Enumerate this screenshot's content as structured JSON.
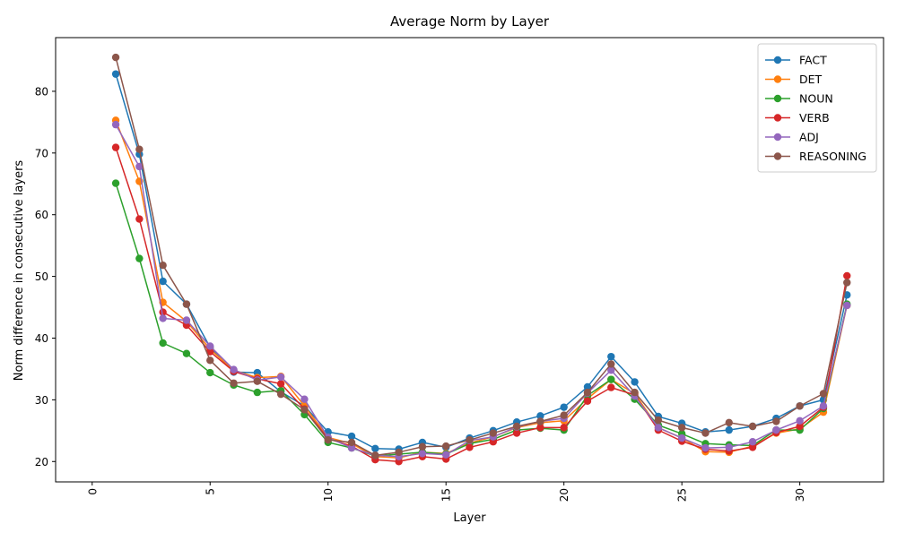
{
  "chart_data": {
    "type": "line",
    "title": "Average Norm by Layer",
    "xlabel": "Layer",
    "ylabel": "Norm difference in consecutive layers",
    "xlim": [
      -1.55,
      33.55
    ],
    "ylim": [
      16.7,
      88.7
    ],
    "x_ticks": [
      0,
      5,
      10,
      15,
      20,
      25,
      30
    ],
    "y_ticks": [
      20,
      30,
      40,
      50,
      60,
      70,
      80
    ],
    "x_tick_rotation": 90,
    "grid": false,
    "legend_position": "top-right",
    "x": [
      1,
      2,
      3,
      4,
      5,
      6,
      7,
      8,
      9,
      10,
      11,
      12,
      13,
      14,
      15,
      16,
      17,
      18,
      19,
      20,
      21,
      22,
      23,
      24,
      25,
      26,
      27,
      28,
      29,
      30,
      31,
      32
    ],
    "series": [
      {
        "name": "FACT",
        "color": "#1f77b4",
        "values": [
          82.8,
          69.8,
          49.2,
          45.5,
          38.5,
          34.5,
          34.4,
          31.3,
          29.0,
          24.8,
          24.1,
          22.1,
          22.0,
          23.1,
          22.3,
          23.8,
          25.0,
          26.4,
          27.4,
          28.8,
          32.1,
          37.0,
          32.9,
          27.3,
          26.2,
          24.8,
          25.1,
          25.7,
          27.0,
          29.0,
          30.0,
          47.0
        ]
      },
      {
        "name": "DET",
        "color": "#ff7f0e",
        "values": [
          75.3,
          65.4,
          45.8,
          42.7,
          38.2,
          34.8,
          33.6,
          33.8,
          29.0,
          23.9,
          22.9,
          20.8,
          20.6,
          21.5,
          21.3,
          23.0,
          24.0,
          25.5,
          26.3,
          26.6,
          30.2,
          33.3,
          31.0,
          25.5,
          23.8,
          21.6,
          21.5,
          22.5,
          24.6,
          25.3,
          28.0,
          45.3
        ]
      },
      {
        "name": "NOUN",
        "color": "#2ca02c",
        "values": [
          65.1,
          52.9,
          39.2,
          37.5,
          34.4,
          32.4,
          31.2,
          31.5,
          27.6,
          23.1,
          22.2,
          20.9,
          21.2,
          21.5,
          21.2,
          22.9,
          23.6,
          25.1,
          25.4,
          25.1,
          30.7,
          33.3,
          30.1,
          25.9,
          24.5,
          22.9,
          22.7,
          22.6,
          25.1,
          25.1,
          28.6,
          45.5
        ]
      },
      {
        "name": "VERB",
        "color": "#d62728",
        "values": [
          70.9,
          59.3,
          44.2,
          42.1,
          37.8,
          34.6,
          33.4,
          32.6,
          28.5,
          23.7,
          22.5,
          20.3,
          20.0,
          20.8,
          20.4,
          22.3,
          23.2,
          24.6,
          25.5,
          25.5,
          29.8,
          32.0,
          30.8,
          25.1,
          23.3,
          22.0,
          21.7,
          22.3,
          24.7,
          25.7,
          28.8,
          50.1
        ]
      },
      {
        "name": "ADJ",
        "color": "#9467bd",
        "values": [
          74.6,
          67.8,
          43.2,
          42.9,
          38.7,
          34.9,
          33.2,
          33.7,
          30.1,
          23.9,
          22.2,
          21.0,
          20.8,
          21.3,
          21.1,
          23.4,
          24.0,
          25.6,
          26.5,
          27.0,
          31.1,
          34.8,
          30.6,
          25.5,
          23.8,
          22.2,
          22.3,
          23.2,
          25.1,
          26.6,
          29.0,
          45.3
        ]
      },
      {
        "name": "REASONING",
        "color": "#8c564b",
        "values": [
          85.5,
          70.6,
          51.8,
          45.5,
          36.4,
          32.7,
          33.0,
          30.9,
          28.4,
          23.5,
          23.1,
          21.0,
          21.5,
          22.4,
          22.5,
          23.5,
          24.6,
          25.7,
          26.5,
          27.5,
          31.2,
          35.8,
          31.2,
          26.7,
          25.5,
          24.6,
          26.3,
          25.7,
          26.5,
          29.0,
          31.0,
          49.0
        ]
      }
    ]
  }
}
